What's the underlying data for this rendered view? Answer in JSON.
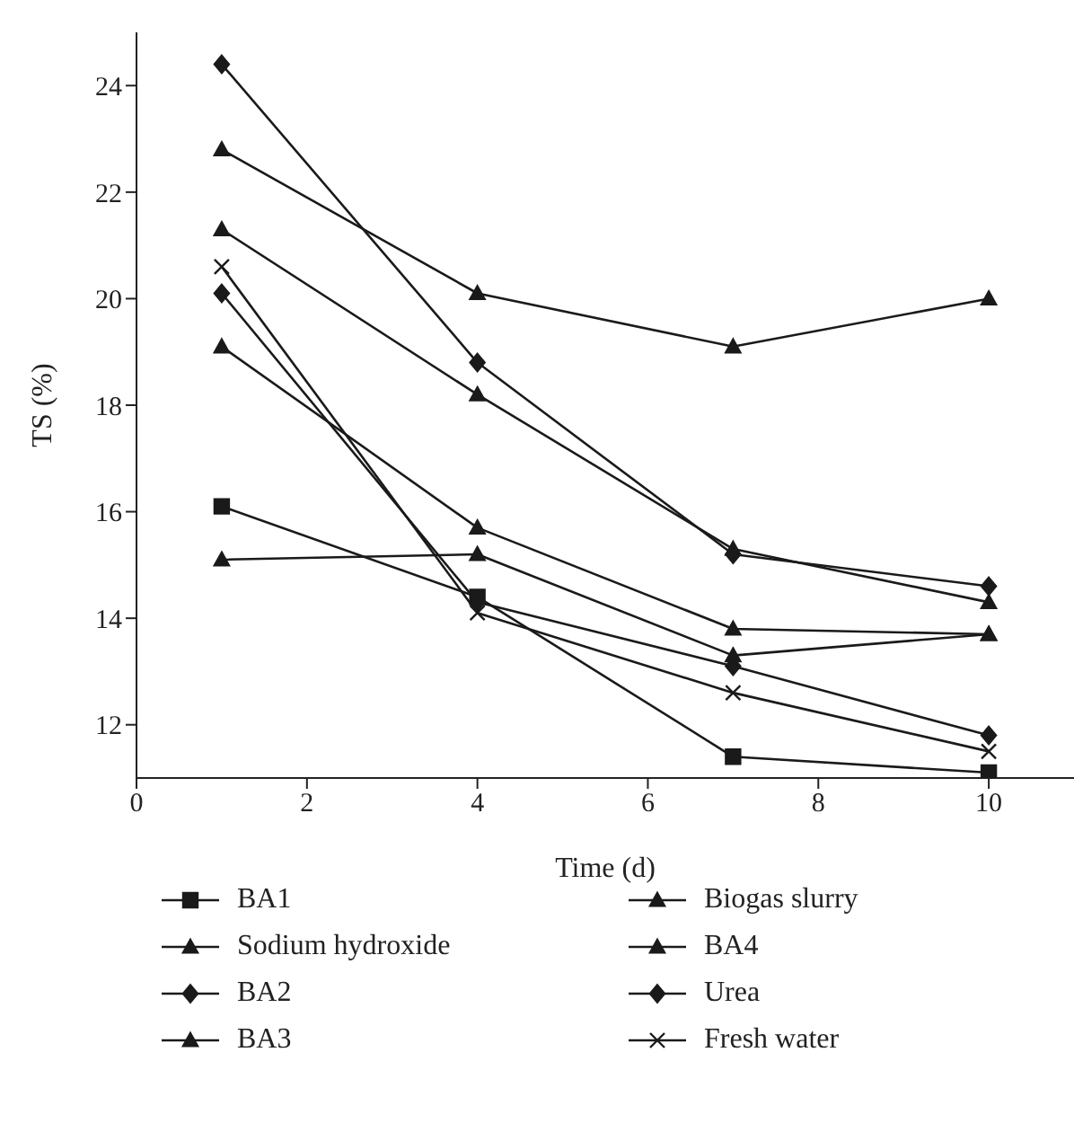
{
  "chart_data": {
    "type": "line",
    "xlabel": "Time (d)",
    "ylabel": "TS (%)",
    "x": [
      1,
      4,
      7,
      10
    ],
    "xlim": [
      0,
      11
    ],
    "xticks": [
      0,
      2,
      4,
      6,
      8,
      10
    ],
    "ylim": [
      11,
      25
    ],
    "yticks": [
      12,
      14,
      16,
      18,
      20,
      22,
      24
    ],
    "legend": "bottom",
    "line_style": "solid",
    "series": [
      {
        "name": "BA1",
        "color": "#1a1a1a",
        "marker": "square",
        "values": [
          16.1,
          14.4,
          11.4,
          11.1
        ]
      },
      {
        "name": "Biogas slurry",
        "color": "#1a1a1a",
        "marker": "triangle",
        "values": [
          15.1,
          15.2,
          13.3,
          13.7
        ]
      },
      {
        "name": "Sodium hydroxide",
        "color": "#1a1a1a",
        "marker": "triangle",
        "values": [
          22.8,
          20.1,
          19.1,
          20.0
        ]
      },
      {
        "name": "BA4",
        "color": "#1a1a1a",
        "marker": "triangle",
        "values": [
          21.3,
          18.2,
          15.3,
          14.3
        ]
      },
      {
        "name": "BA2",
        "color": "#1a1a1a",
        "marker": "diamond",
        "values": [
          20.1,
          14.3,
          13.1,
          11.8
        ]
      },
      {
        "name": "Urea",
        "color": "#1a1a1a",
        "marker": "diamond",
        "values": [
          24.4,
          18.8,
          15.2,
          14.6
        ]
      },
      {
        "name": "BA3",
        "color": "#1a1a1a",
        "marker": "triangle",
        "values": [
          19.1,
          15.7,
          13.8,
          13.7
        ]
      },
      {
        "name": "Fresh water",
        "color": "#1a1a1a",
        "marker": "cross",
        "values": [
          20.6,
          14.1,
          12.6,
          11.5
        ]
      }
    ]
  }
}
